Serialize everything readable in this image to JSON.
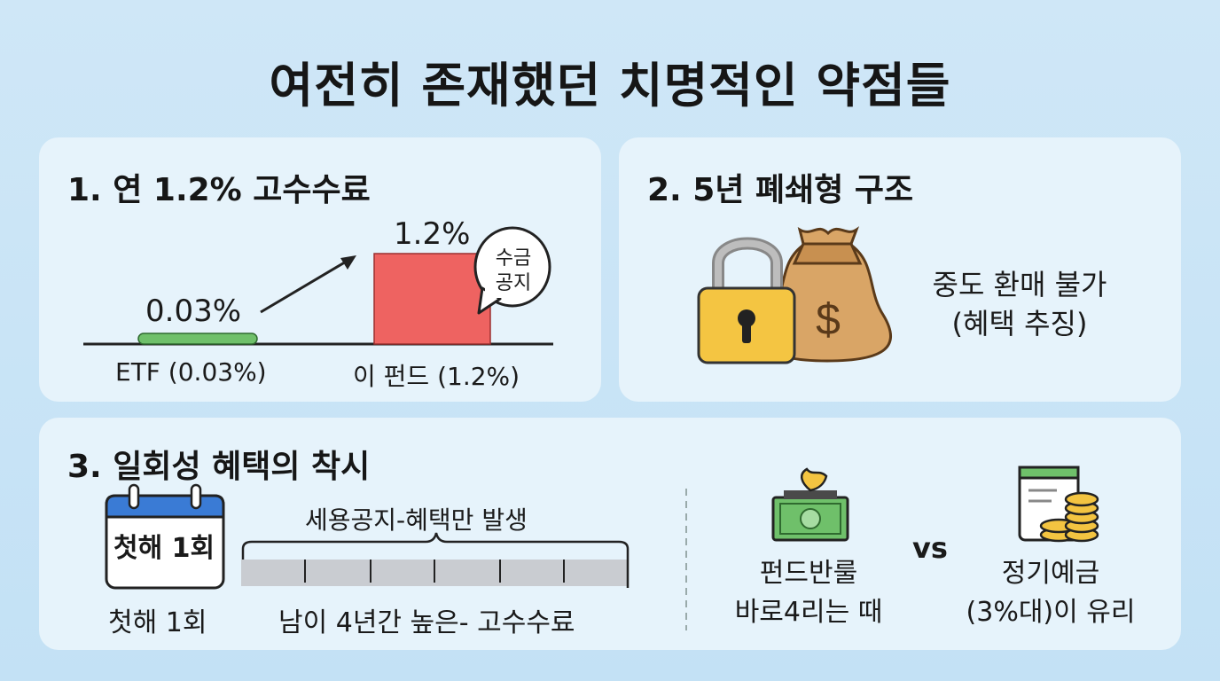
{
  "title": "여전히 존재했던 치명적인 약점들",
  "sections": {
    "fee": {
      "heading": "1. 연 1.2% 고수수료",
      "bars": [
        {
          "label": "ETF (0.03%)",
          "value_label": "0.03%",
          "value": 0.03,
          "color": "#6fc06a"
        },
        {
          "label": "이 펀드 (1.2%)",
          "value_label": "1.2%",
          "value": 1.2,
          "color": "#ee6361"
        }
      ],
      "bubble_line1": "수금",
      "bubble_line2": "공지"
    },
    "lock": {
      "heading": "2. 5년 폐쇄형 구조",
      "line1": "중도 환매 불가",
      "line2": "(혜택 추징)",
      "icons": [
        "padlock-icon",
        "money-bag-icon"
      ]
    },
    "once": {
      "heading": "3. 일회성 혜택의 착시",
      "calendar_text": "첫해 1회",
      "calendar_caption": "첫해 1회",
      "brace_label": "세용공지-혜택만 발생",
      "timeline_caption": "남이 4년간  높은- 고수수료",
      "left_line1": "펀드반룰",
      "left_line2": "바로4리는 때",
      "vs": "vs",
      "right_line1": "정기예금",
      "right_line2": "(3%대)이 유리"
    }
  },
  "colors": {
    "background": "#c8e4f6",
    "card": "#e6f3fb",
    "green_bar": "#6fc06a",
    "red_bar": "#ee6361",
    "lock_yellow": "#f4c542",
    "bag_brown": "#d9a566"
  }
}
